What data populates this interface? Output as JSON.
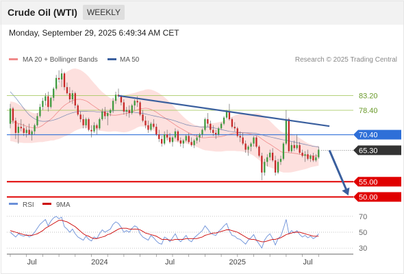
{
  "header": {
    "title": "Crude Oil (WTI)",
    "period": "WEEKLY",
    "datetime": "Monday, September 29, 2025 6:49:34 AM CET"
  },
  "colors": {
    "bollinger": "#f08a8a",
    "bollinger_band": "#fde0de",
    "ma50": "#3a5f9e",
    "candle_up": "#3f9a3f",
    "candle_down": "#c62828",
    "resistance_green": "#9bc44f",
    "pivot_blue": "#2e6fd8",
    "support_red": "#e00000",
    "last_price": "#333333",
    "trendline": "#3a5f9e",
    "rsi": "#6a8fd8",
    "rsi_ma": "#cc0000"
  },
  "chart_data": [
    {
      "type": "candlestick",
      "legend": [
        {
          "name": "MA 20 + Bollinger Bands",
          "color": "#f08a8a"
        },
        {
          "name": "MA 50",
          "color": "#3a5f9e"
        }
      ],
      "credit": "Research © 2025 Trading Central",
      "ylim": [
        49,
        93
      ],
      "x_labels": [
        {
          "label": "Jul",
          "index": 8
        },
        {
          "label": "2024",
          "index": 33
        },
        {
          "label": "Jul",
          "index": 59
        },
        {
          "label": "2025",
          "index": 84
        },
        {
          "label": "Jul",
          "index": 110
        }
      ],
      "candles": [
        [
          74,
          80.5,
          72.5,
          79
        ],
        [
          79,
          79.5,
          74,
          75
        ],
        [
          75,
          76,
          69,
          71
        ],
        [
          71,
          74,
          67.5,
          73
        ],
        [
          73,
          75.5,
          71.5,
          72.5
        ],
        [
          72.5,
          74,
          70,
          71
        ],
        [
          71,
          73,
          69.5,
          72
        ],
        [
          72,
          74,
          70.5,
          70.5
        ],
        [
          70.5,
          72,
          68.5,
          71.5
        ],
        [
          71.5,
          74,
          70.5,
          73.5
        ],
        [
          73.5,
          77.5,
          73,
          76.5
        ],
        [
          76.5,
          80.5,
          76,
          79.5
        ],
        [
          79.5,
          82.5,
          78.5,
          81.5
        ],
        [
          81.5,
          84,
          80,
          83
        ],
        [
          83,
          84.5,
          78,
          79.5
        ],
        [
          79.5,
          83,
          79,
          82.5
        ],
        [
          82.5,
          86,
          81.5,
          85.5
        ],
        [
          85.5,
          90,
          85,
          89
        ],
        [
          89,
          91.5,
          87.5,
          88.5
        ],
        [
          88.5,
          92,
          86,
          90.5
        ],
        [
          90.5,
          91,
          85,
          86
        ],
        [
          86,
          87.5,
          83.5,
          84
        ],
        [
          84,
          86,
          81,
          82
        ],
        [
          82,
          85,
          80.5,
          84
        ],
        [
          84,
          84.5,
          79,
          80
        ],
        [
          80,
          80.5,
          76.5,
          77
        ],
        [
          77,
          78,
          74.5,
          75.5
        ],
        [
          75.5,
          77,
          72.5,
          73.5
        ],
        [
          73.5,
          76,
          72.5,
          75.5
        ],
        [
          75.5,
          76,
          71.5,
          72
        ],
        [
          72,
          73.5,
          69.5,
          71.5
        ],
        [
          71.5,
          74.5,
          71,
          73.5
        ],
        [
          73.5,
          74,
          70.5,
          72.5
        ],
        [
          72.5,
          76,
          72,
          75.5
        ],
        [
          75.5,
          79,
          75,
          78
        ],
        [
          78,
          79.5,
          75.5,
          76.5
        ],
        [
          76.5,
          78,
          73.5,
          77.5
        ],
        [
          77.5,
          79,
          76.5,
          78.5
        ],
        [
          78.5,
          82.5,
          77.5,
          81.5
        ],
        [
          81.5,
          84.5,
          80.5,
          83.5
        ],
        [
          83.5,
          85.5,
          82.5,
          83
        ],
        [
          83,
          83.5,
          80,
          81
        ],
        [
          81,
          82,
          77,
          78
        ],
        [
          78,
          79.5,
          76.5,
          78.5
        ],
        [
          78.5,
          80,
          76,
          77.5
        ],
        [
          77.5,
          80.5,
          77,
          80
        ],
        [
          80,
          82,
          78.5,
          81.5
        ],
        [
          81.5,
          83,
          79.5,
          81
        ],
        [
          81,
          81.5,
          76.5,
          77
        ],
        [
          77,
          78.5,
          74.5,
          75
        ],
        [
          75,
          76.5,
          72.5,
          73.5
        ],
        [
          73.5,
          75,
          71,
          72
        ],
        [
          72,
          74.5,
          71.5,
          74
        ],
        [
          74,
          75.5,
          72.5,
          73
        ],
        [
          73,
          74,
          70,
          70.5
        ],
        [
          70.5,
          72,
          68,
          69
        ],
        [
          69,
          70,
          66.5,
          67.5
        ],
        [
          67.5,
          71.5,
          67,
          70.5
        ],
        [
          70.5,
          72,
          68.5,
          69.5
        ],
        [
          69.5,
          71,
          67.5,
          68
        ],
        [
          68,
          70,
          66.5,
          69.5
        ],
        [
          69.5,
          72.5,
          69,
          71.5
        ],
        [
          71.5,
          72,
          68,
          68.5
        ],
        [
          68.5,
          69.5,
          66.5,
          67.5
        ],
        [
          67.5,
          69,
          66,
          68.5
        ],
        [
          68.5,
          70.5,
          68,
          70
        ],
        [
          70,
          71,
          67.5,
          68
        ],
        [
          68,
          69.5,
          66.5,
          67
        ],
        [
          67,
          69,
          66,
          68.5
        ],
        [
          68.5,
          70.5,
          67.5,
          69.5
        ],
        [
          69.5,
          71,
          68,
          70.5
        ],
        [
          70.5,
          72.5,
          69.5,
          72
        ],
        [
          72,
          76,
          71.5,
          75.5
        ],
        [
          75.5,
          77.5,
          73,
          74
        ],
        [
          74,
          75,
          71,
          72
        ],
        [
          72,
          73.5,
          70,
          71
        ],
        [
          71,
          72,
          69,
          70.5
        ],
        [
          70.5,
          73,
          70,
          72.5
        ],
        [
          72.5,
          74.5,
          72,
          74
        ],
        [
          74,
          76.5,
          73.5,
          76
        ],
        [
          76,
          78.5,
          75.5,
          78
        ],
        [
          78,
          80.5,
          75,
          75.5
        ],
        [
          75.5,
          76,
          72.5,
          73
        ],
        [
          73,
          74.5,
          71.5,
          72.5
        ],
        [
          72.5,
          73,
          69.5,
          70
        ],
        [
          70,
          71.5,
          68,
          69.5
        ],
        [
          69.5,
          71,
          67,
          67.5
        ],
        [
          67.5,
          68.5,
          64.5,
          65.5
        ],
        [
          65.5,
          67,
          63.5,
          66.5
        ],
        [
          66.5,
          68,
          65,
          67.5
        ],
        [
          67.5,
          70,
          66.5,
          69.5
        ],
        [
          69.5,
          70,
          66,
          66.5
        ],
        [
          66.5,
          67,
          63,
          63.5
        ],
        [
          63.5,
          64.5,
          55.5,
          58
        ],
        [
          58,
          62.5,
          57,
          61.5
        ],
        [
          61.5,
          64,
          60,
          63
        ],
        [
          63,
          65.5,
          62,
          64.5
        ],
        [
          64.5,
          66,
          61.5,
          62
        ],
        [
          62,
          63.5,
          57,
          58
        ],
        [
          58,
          62.5,
          57.5,
          61.5
        ],
        [
          61.5,
          63.5,
          60.5,
          62.5
        ],
        [
          62.5,
          68,
          62,
          67.5
        ],
        [
          67.5,
          78.5,
          67,
          75.5
        ],
        [
          75.5,
          76,
          64.5,
          65
        ],
        [
          65,
          68,
          64.5,
          67
        ],
        [
          67,
          68.5,
          65,
          66
        ],
        [
          66,
          70.5,
          65.5,
          67
        ],
        [
          67,
          68,
          64,
          64.5
        ],
        [
          64.5,
          65.5,
          63,
          63.5
        ],
        [
          63.5,
          65,
          61.5,
          64
        ],
        [
          64,
          65.5,
          62,
          62.5
        ],
        [
          62.5,
          64,
          61.5,
          63.5
        ],
        [
          63.5,
          64.5,
          61.5,
          62
        ],
        [
          62,
          64,
          61.5,
          63
        ],
        [
          63,
          66.5,
          62.5,
          65.5
        ]
      ],
      "ma20": [
        74.8,
        74.7,
        74.4,
        74.1,
        73.8,
        73.5,
        73.2,
        72.9,
        72.7,
        72.6,
        72.7,
        73.0,
        73.5,
        74.2,
        74.8,
        75.5,
        76.3,
        77.3,
        78.2,
        79.2,
        80.0,
        80.6,
        81.1,
        81.6,
        81.9,
        82.0,
        82.0,
        81.8,
        81.5,
        81.0,
        80.3,
        79.7,
        79.1,
        78.5,
        78.0,
        77.6,
        77.2,
        76.9,
        76.8,
        76.8,
        76.9,
        77.1,
        77.2,
        77.4,
        77.6,
        77.9,
        78.2,
        78.6,
        78.9,
        79.0,
        79.1,
        79.0,
        78.7,
        78.3,
        77.8,
        77.2,
        76.6,
        76.0,
        75.4,
        74.8,
        74.2,
        73.6,
        73.0,
        72.5,
        72.0,
        71.5,
        71.0,
        70.6,
        70.2,
        69.9,
        69.6,
        69.4,
        69.4,
        69.5,
        69.6,
        69.6,
        69.6,
        69.7,
        69.8,
        70.0,
        70.3,
        70.5,
        70.7,
        70.9,
        71.0,
        71.1,
        71.1,
        71.0,
        70.8,
        70.6,
        70.4,
        70.1,
        69.7,
        69.0,
        68.4,
        67.8,
        67.3,
        66.7,
        66.1,
        65.5,
        64.9,
        64.5,
        64.6,
        64.5,
        64.4,
        64.3,
        64.2,
        64.0,
        63.8,
        63.6,
        63.5,
        63.5,
        63.4,
        63.4,
        63.6
      ],
      "boll_width": [
        6.5,
        6.5,
        6.5,
        6.3,
        6.0,
        5.8,
        5.5,
        5.2,
        5.0,
        4.8,
        4.8,
        5.0,
        5.5,
        6.0,
        6.5,
        7.0,
        7.8,
        8.5,
        9.2,
        9.8,
        10.2,
        10.5,
        10.5,
        10.4,
        10.2,
        9.9,
        9.6,
        9.2,
        8.8,
        8.4,
        8.0,
        7.6,
        7.2,
        6.8,
        6.4,
        6.1,
        5.8,
        5.5,
        5.3,
        5.3,
        5.5,
        5.8,
        6.0,
        6.1,
        6.1,
        6.0,
        5.9,
        5.8,
        5.8,
        5.9,
        6.1,
        6.3,
        6.5,
        6.6,
        6.7,
        6.8,
        6.8,
        6.7,
        6.5,
        6.2,
        5.9,
        5.5,
        5.1,
        4.7,
        4.3,
        4.0,
        3.8,
        3.6,
        3.5,
        3.5,
        3.6,
        3.8,
        4.1,
        4.3,
        4.5,
        4.6,
        4.7,
        4.8,
        4.9,
        5.0,
        5.2,
        5.4,
        5.6,
        5.8,
        6.0,
        6.1,
        6.2,
        6.3,
        6.4,
        6.6,
        6.9,
        7.3,
        7.6,
        7.8,
        7.9,
        7.8,
        7.6,
        7.3,
        7.0,
        6.8,
        6.6,
        6.5,
        6.6,
        6.5,
        6.3,
        6.0,
        5.7,
        5.3,
        4.9,
        4.5,
        4.1,
        3.8,
        3.5,
        3.3,
        3.3
      ],
      "ma50": [
        84.5,
        83.5,
        82.5,
        81.3,
        80.2,
        79.0,
        77.9,
        76.9,
        76.2,
        75.6,
        75.2,
        74.9,
        74.8,
        74.8,
        74.9,
        75.0,
        75.2,
        75.5,
        75.8,
        76.2,
        76.6,
        77.0,
        77.3,
        77.6,
        77.8,
        78.0,
        78.1,
        78.1,
        78.1,
        78.0,
        78.0,
        78.0,
        77.9,
        77.9,
        77.9,
        78.0,
        78.0,
        78.1,
        78.2,
        78.3,
        78.3,
        78.3,
        78.2,
        78.1,
        77.9,
        77.8,
        77.7,
        77.6,
        77.5,
        77.4,
        77.2,
        77.0,
        76.8,
        76.6,
        76.4,
        76.2,
        76.0,
        75.8,
        75.6,
        75.4,
        75.2,
        74.9,
        74.6,
        74.3,
        74.0,
        73.7,
        73.5,
        73.3,
        73.2,
        73.1,
        73.0,
        72.9,
        72.9,
        72.9,
        72.8,
        72.7,
        72.5,
        72.3,
        72.1,
        71.9,
        71.7,
        71.5,
        71.4,
        71.3,
        71.2,
        71.1,
        71.0,
        71.0,
        71.0,
        71.0,
        70.9,
        70.8,
        70.6,
        70.4,
        70.1,
        69.9,
        69.7,
        69.5,
        69.3,
        69.1,
        68.9,
        68.7,
        68.6,
        68.4,
        68.2,
        68.0,
        67.8,
        67.6,
        67.4,
        67.2,
        67.0,
        66.8,
        66.6,
        66.5,
        66.4
      ],
      "trendline": {
        "from": [
          40,
          83.2
        ],
        "to": [
          118,
          73.2
        ]
      },
      "forecast_arrow": {
        "from": [
          118,
          65.3
        ],
        "to": [
          125,
          50.5
        ]
      },
      "levels": [
        {
          "price": 83.2,
          "label": "83.20",
          "kind": "resistance"
        },
        {
          "price": 78.4,
          "label": "78.40",
          "kind": "resistance"
        },
        {
          "price": 70.4,
          "label": "70.40",
          "kind": "pivot"
        },
        {
          "price": 65.3,
          "label": "65.30",
          "kind": "last"
        },
        {
          "price": 55.0,
          "label": "55.00",
          "kind": "support"
        },
        {
          "price": 50.0,
          "label": "50.00",
          "kind": "support"
        }
      ]
    },
    {
      "type": "line",
      "legend": [
        {
          "name": "RSI",
          "color": "#6a8fd8"
        },
        {
          "name": "9MA",
          "color": "#cc0000"
        }
      ],
      "ylim": [
        25,
        75
      ],
      "y_ticks": [
        "70",
        "50",
        "30"
      ],
      "rsi": [
        50,
        47,
        44,
        48,
        46,
        45,
        47,
        44,
        46,
        50,
        55,
        60,
        63,
        66,
        58,
        64,
        68,
        70,
        67,
        69,
        57,
        54,
        50,
        54,
        48,
        44,
        42,
        40,
        45,
        41,
        39,
        44,
        42,
        48,
        53,
        50,
        52,
        54,
        60,
        63,
        61,
        56,
        50,
        52,
        50,
        55,
        58,
        56,
        48,
        44,
        42,
        40,
        46,
        43,
        39,
        36,
        35,
        44,
        42,
        38,
        43,
        48,
        41,
        38,
        42,
        46,
        40,
        38,
        43,
        46,
        49,
        52,
        58,
        54,
        49,
        47,
        46,
        51,
        54,
        58,
        61,
        52,
        46,
        45,
        42,
        41,
        38,
        35,
        40,
        43,
        47,
        40,
        35,
        30,
        40,
        45,
        48,
        42,
        34,
        42,
        45,
        55,
        66,
        48,
        52,
        49,
        52,
        47,
        44,
        46,
        43,
        45,
        42,
        44,
        48
      ],
      "rsi_ma": [
        52,
        51,
        50,
        49,
        48,
        47,
        46,
        46,
        46,
        47,
        48,
        50,
        52,
        55,
        57,
        59,
        61,
        63,
        65,
        65,
        64,
        63,
        61,
        59,
        57,
        54,
        51,
        48,
        46,
        45,
        43,
        42,
        42,
        43,
        44,
        45,
        47,
        48,
        50,
        52,
        54,
        55,
        55,
        55,
        54,
        54,
        54,
        54,
        53,
        51,
        49,
        48,
        47,
        46,
        45,
        43,
        41,
        41,
        41,
        40,
        40,
        41,
        41,
        41,
        41,
        42,
        42,
        42,
        42,
        42,
        43,
        44,
        46,
        47,
        48,
        49,
        49,
        50,
        51,
        52,
        53,
        53,
        52,
        51,
        50,
        48,
        46,
        44,
        42,
        41,
        41,
        40,
        39,
        38,
        38,
        39,
        40,
        41,
        41,
        42,
        43,
        45,
        47,
        48,
        49,
        50,
        50,
        50,
        49,
        48,
        47,
        46,
        45,
        45,
        45
      ]
    }
  ]
}
